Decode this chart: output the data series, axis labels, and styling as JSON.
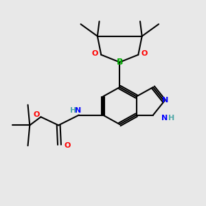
{
  "bg_color": "#e8e8e8",
  "atom_colors": {
    "C": "#000000",
    "N": "#0000ff",
    "O": "#ff0000",
    "B": "#00aa00",
    "H": "#4fa8a8"
  }
}
